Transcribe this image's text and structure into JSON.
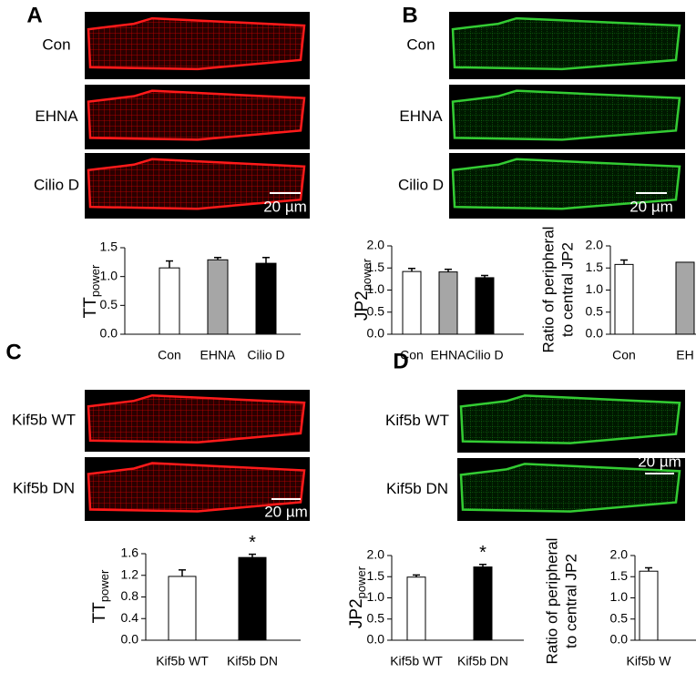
{
  "panels": [
    {
      "letter": "A",
      "image_labels": [
        "Con",
        "EHNA",
        "Cilio D"
      ],
      "scale_bar": "20 µm"
    },
    {
      "letter": "B",
      "image_labels": [
        "Con",
        "EHNA",
        "Cilio D"
      ],
      "scale_bar": "20 µm"
    },
    {
      "letter": "C",
      "image_labels": [
        "Kif5b WT",
        "Kif5b DN"
      ],
      "scale_bar": "20 µm"
    },
    {
      "letter": "D",
      "image_labels": [
        "Kif5b WT",
        "Kif5b DN"
      ],
      "scale_bar": "20 µm"
    }
  ],
  "chart_data": [
    {
      "type": "bar",
      "ylabel": "TT",
      "ylabel_sub": "power",
      "categories": [
        "Con",
        "EHNA",
        "Cilio D"
      ],
      "values": [
        1.15,
        1.29,
        1.23
      ],
      "errors": [
        0.12,
        0.04,
        0.1
      ],
      "colors": [
        "#ffffff",
        "#a6a6a6",
        "#000000"
      ],
      "ylim": [
        0,
        1.5
      ],
      "yticks": [
        {
          "value": 0,
          "label": "0.0"
        },
        {
          "value": 0.5,
          "label": "0.5"
        },
        {
          "value": 1,
          "label": "1.0"
        },
        {
          "value": 1.5,
          "label": "1.5"
        }
      ]
    },
    {
      "type": "bar",
      "ylabel": "JP2",
      "ylabel_sub": "power",
      "categories": [
        "Con",
        "EHNA",
        "Cilio D"
      ],
      "values": [
        1.42,
        1.41,
        1.28
      ],
      "errors": [
        0.07,
        0.06,
        0.05
      ],
      "colors": [
        "#ffffff",
        "#a6a6a6",
        "#000000"
      ],
      "ylim": [
        0,
        2
      ],
      "yticks": [
        {
          "value": 0,
          "label": "0.0"
        },
        {
          "value": 0.5,
          "label": "0.5"
        },
        {
          "value": 1,
          "label": "1.0"
        },
        {
          "value": 1.5,
          "label": "1.5"
        },
        {
          "value": 2,
          "label": "2.0"
        }
      ]
    },
    {
      "type": "bar",
      "ylabel_lines": [
        "Ratio of peripheral",
        "to central JP2"
      ],
      "categories": [
        "Con",
        "EH"
      ],
      "values": [
        1.58,
        1.63
      ],
      "errors": [
        0.1,
        null
      ],
      "colors": [
        "#ffffff",
        "#a6a6a6"
      ],
      "ylim": [
        0,
        2
      ],
      "yticks": [
        {
          "value": 0,
          "label": "0.0"
        },
        {
          "value": 0.5,
          "label": "0.5"
        },
        {
          "value": 1,
          "label": "1.0"
        },
        {
          "value": 1.5,
          "label": "1.5"
        },
        {
          "value": 2,
          "label": "2.0"
        }
      ]
    },
    {
      "type": "bar",
      "ylabel": "TT",
      "ylabel_sub": "power",
      "categories": [
        "Kif5b WT",
        "Kif5b DN"
      ],
      "values": [
        1.18,
        1.53
      ],
      "errors": [
        0.12,
        0.06
      ],
      "colors": [
        "#ffffff",
        "#000000"
      ],
      "significance": [
        null,
        "*"
      ],
      "ylim": [
        0,
        1.6
      ],
      "yticks": [
        {
          "value": 0,
          "label": "0.0"
        },
        {
          "value": 0.4,
          "label": "0.4"
        },
        {
          "value": 0.8,
          "label": "0.8"
        },
        {
          "value": 1.2,
          "label": "1.2"
        },
        {
          "value": 1.6,
          "label": "1.6"
        }
      ]
    },
    {
      "type": "bar",
      "ylabel": "JP2",
      "ylabel_sub": "power",
      "categories": [
        "Kif5b WT",
        "Kif5b DN"
      ],
      "values": [
        1.49,
        1.73
      ],
      "errors": [
        0.05,
        0.06
      ],
      "colors": [
        "#ffffff",
        "#000000"
      ],
      "significance": [
        null,
        "*"
      ],
      "ylim": [
        0,
        2
      ],
      "yticks": [
        {
          "value": 0,
          "label": "0.0"
        },
        {
          "value": 0.5,
          "label": "0.5"
        },
        {
          "value": 1,
          "label": "1.0"
        },
        {
          "value": 1.5,
          "label": "1.5"
        },
        {
          "value": 2,
          "label": "2.0"
        }
      ]
    },
    {
      "type": "bar",
      "ylabel_lines": [
        "Ratio of peripheral",
        "to central JP2"
      ],
      "categories": [
        "Kif5b W"
      ],
      "values": [
        1.63
      ],
      "errors": [
        0.08
      ],
      "colors": [
        "#ffffff"
      ],
      "ylim": [
        0,
        2
      ],
      "yticks": [
        {
          "value": 0,
          "label": "0.0"
        },
        {
          "value": 0.5,
          "label": "0.5"
        },
        {
          "value": 1,
          "label": "1.0"
        },
        {
          "value": 1.5,
          "label": "1.5"
        },
        {
          "value": 2,
          "label": "2.0"
        }
      ]
    }
  ]
}
